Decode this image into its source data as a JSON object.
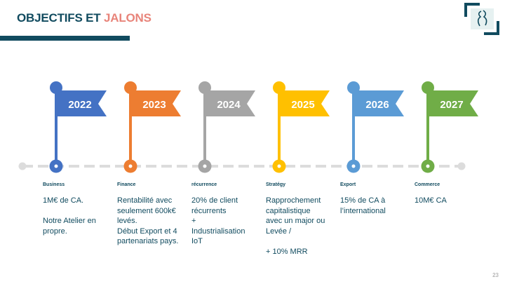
{
  "title": {
    "part1": "OBJECTIFS ET",
    "part2": "JALONS"
  },
  "page_number": "23",
  "colors": {
    "dark_teal": "#114b5f",
    "coral": "#e8847a",
    "timeline": "#dcdcdc"
  },
  "milestones": [
    {
      "year": "2022",
      "color": "#4472c4",
      "heading": "Business",
      "text": "1M€ de CA.\n\nNotre Atelier en\npropre."
    },
    {
      "year": "2023",
      "color": "#ed7d31",
      "heading": "Finance",
      "text": "Rentabilité avec\nseulement 600k€\nlevés.\nDébut Export et 4\npartenariats pays."
    },
    {
      "year": "2024",
      "color": "#a5a5a5",
      "heading": "récurrence",
      "text": "20% de client\nrécurrents\n+\nIndustrialisation\nIoT"
    },
    {
      "year": "2025",
      "color": "#ffc000",
      "heading": "Stratégy",
      "text": "Rapprochement\ncapitalistique\navec un major ou\nLevée /\n\n+ 10% MRR"
    },
    {
      "year": "2026",
      "color": "#5b9bd5",
      "heading": "Export",
      "text": "15% de CA à\nl’international"
    },
    {
      "year": "2027",
      "color": "#70ad47",
      "heading": "Commerce",
      "text": "10M€ CA"
    }
  ]
}
